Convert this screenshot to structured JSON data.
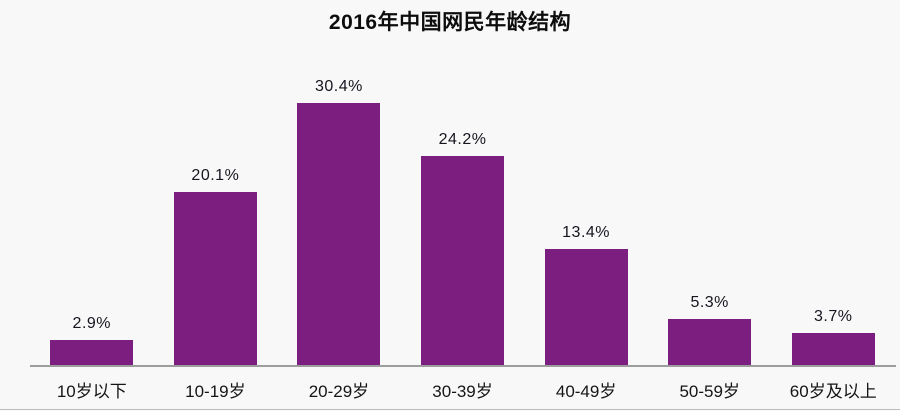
{
  "chart_data": {
    "type": "bar",
    "title": "2016年中国网民年龄结构",
    "categories": [
      "10岁以下",
      "10-19岁",
      "20-29岁",
      "30-39岁",
      "40-49岁",
      "50-59岁",
      "60岁及以上"
    ],
    "values": [
      2.9,
      20.1,
      30.4,
      24.2,
      13.4,
      5.3,
      3.7
    ],
    "value_labels": [
      "2.9%",
      "20.1%",
      "30.4%",
      "24.2%",
      "13.4%",
      "5.3%",
      "3.7%"
    ],
    "xlabel": "",
    "ylabel": "",
    "ylim": [
      0,
      35
    ],
    "grid": false,
    "legend": "none",
    "colors": {
      "bar": "#7B1E80",
      "axis_line": "#9d9d9d",
      "background": "#f8f8f8",
      "text": "#15151e"
    }
  }
}
